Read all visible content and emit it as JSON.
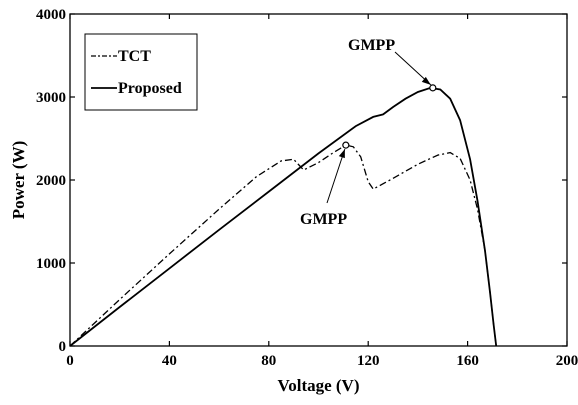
{
  "chart_data": {
    "type": "line",
    "title": "",
    "xlabel": "Voltage (V)",
    "ylabel": "Power (W)",
    "xlim": [
      0,
      200
    ],
    "ylim": [
      0,
      4000
    ],
    "xticks": [
      0,
      40,
      80,
      120,
      160,
      200
    ],
    "yticks": [
      0,
      1000,
      2000,
      3000,
      4000
    ],
    "xtick_labels": [
      "0",
      "40",
      "80",
      "120",
      "160",
      "200"
    ],
    "ytick_labels": [
      "0",
      "1000",
      "2000",
      "3000",
      "4000"
    ],
    "grid": false,
    "legend_position": "top-left",
    "series": [
      {
        "name": "TCT",
        "line_style": "dash-dot",
        "color": "#000000",
        "x": [
          0,
          20,
          40,
          60,
          75,
          85,
          90,
          94,
          100,
          106,
          111,
          114,
          117,
          120,
          122,
          130,
          140,
          148,
          153,
          157,
          161,
          164,
          167,
          169,
          170.5,
          171.5
        ],
        "y": [
          0,
          560,
          1110,
          1650,
          2040,
          2230,
          2250,
          2120,
          2210,
          2330,
          2420,
          2400,
          2280,
          1980,
          1890,
          2020,
          2190,
          2300,
          2330,
          2260,
          2000,
          1650,
          1150,
          650,
          250,
          0
        ]
      },
      {
        "name": "Proposed",
        "line_style": "solid",
        "color": "#000000",
        "x": [
          0,
          20,
          40,
          60,
          80,
          100,
          115,
          122,
          126,
          130,
          135,
          140,
          145,
          149,
          153,
          157,
          161,
          164,
          167,
          169,
          170.5,
          171.5
        ],
        "y": [
          0,
          470,
          935,
          1400,
          1860,
          2320,
          2650,
          2760,
          2790,
          2880,
          2980,
          3060,
          3110,
          3090,
          2980,
          2720,
          2250,
          1750,
          1150,
          650,
          250,
          0
        ]
      }
    ],
    "annotations": [
      {
        "text": "GMPP",
        "marker_x": 146,
        "marker_y": 3110
      },
      {
        "text": "GMPP",
        "marker_x": 111,
        "marker_y": 2420
      }
    ]
  }
}
